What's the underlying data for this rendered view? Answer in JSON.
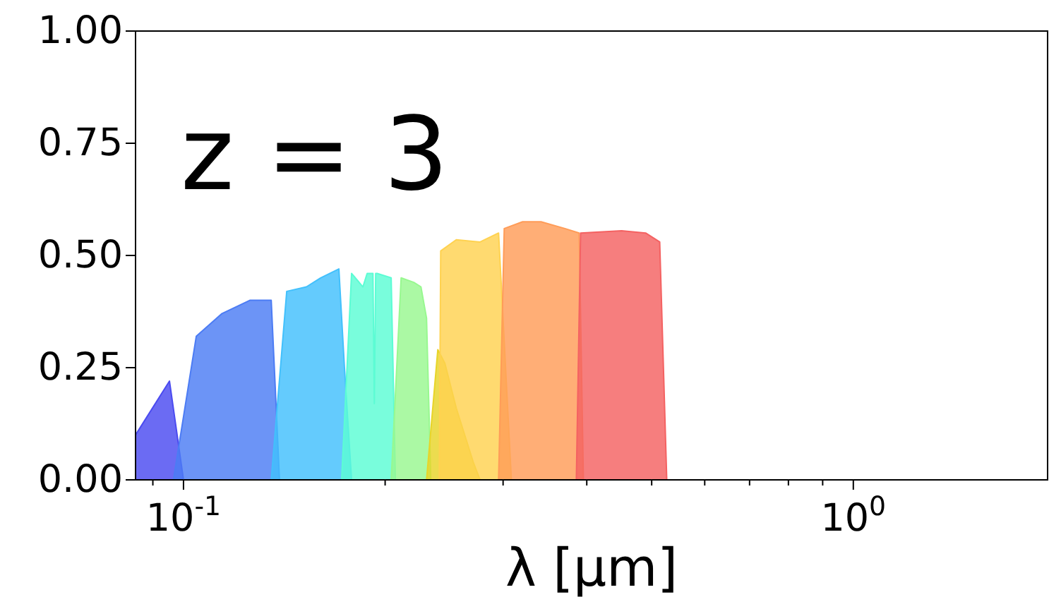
{
  "chart_data": {
    "type": "area",
    "xlabel": "λ [μm]",
    "annotations": [
      "z = 3"
    ],
    "log": "x",
    "grid": false,
    "xlim": [
      0.0848,
      1.95
    ],
    "ylim": [
      0,
      1
    ],
    "xticks": [
      {
        "value": 0.09,
        "label": null
      },
      {
        "value": 0.1,
        "label": "10$^{-1}$"
      },
      {
        "value": 0.2,
        "label": null
      },
      {
        "value": 0.3,
        "label": null
      },
      {
        "value": 0.4,
        "label": null
      },
      {
        "value": 0.5,
        "label": null
      },
      {
        "value": 0.6,
        "label": null
      },
      {
        "value": 0.7,
        "label": null
      },
      {
        "value": 0.8,
        "label": null
      },
      {
        "value": 0.9,
        "label": null
      },
      {
        "value": 1,
        "label": "10$^{0}$"
      }
    ],
    "yticks": [
      {
        "value": 0,
        "label": "0.00"
      },
      {
        "value": 0.25,
        "label": "0.25"
      },
      {
        "value": 0.5,
        "label": "0.50"
      },
      {
        "value": 0.75,
        "label": "0.75"
      },
      {
        "value": 1,
        "label": "1.00"
      }
    ],
    "series": [
      {
        "color": "#4b4bf0",
        "x": [
          0.0848,
          0.0953,
          0.1
        ],
        "values": [
          0.1,
          0.22,
          0
        ]
      },
      {
        "color": "#4c7cf4",
        "x": [
          0.0966,
          0.1045,
          0.114,
          0.1256,
          0.1352,
          0.1391
        ],
        "values": [
          0,
          0.32,
          0.37,
          0.4,
          0.4,
          0
        ]
      },
      {
        "color": "#42c0fc",
        "x": [
          0.1352,
          0.1426,
          0.1526,
          0.1602,
          0.1706,
          0.1739,
          0.1782
        ],
        "values": [
          0,
          0.42,
          0.43,
          0.45,
          0.47,
          0.25,
          0
        ]
      },
      {
        "color": "#5cfcd4",
        "x": [
          0.1722,
          0.1782,
          0.1853,
          0.188,
          0.1909,
          0.1918,
          0.1927,
          0.1936,
          0.1946,
          0.2042,
          0.2072
        ],
        "values": [
          0,
          0.46,
          0.43,
          0.46,
          0.46,
          0.46,
          0.17,
          0.46,
          0.46,
          0.45,
          0
        ]
      },
      {
        "color": "#98f890",
        "x": [
          0.2042,
          0.2113,
          0.2207,
          0.2262,
          0.2306,
          0.234
        ],
        "values": [
          0,
          0.45,
          0.44,
          0.43,
          0.36,
          0
        ]
      },
      {
        "color": "#e8d428",
        "x": [
          0.2306,
          0.2397,
          0.2456,
          0.2554,
          0.2707,
          0.2772
        ],
        "values": [
          0,
          0.29,
          0.26,
          0.16,
          0.04,
          0
        ]
      },
      {
        "color": "#ffd250",
        "x": [
          0.2409,
          0.2421,
          0.2554,
          0.2772,
          0.2954,
          0.3087
        ],
        "values": [
          0,
          0.51,
          0.535,
          0.53,
          0.55,
          0
        ]
      },
      {
        "color": "#ff9c58",
        "x": [
          0.2954,
          0.3012,
          0.3208,
          0.3418,
          0.3711,
          0.3897,
          0.3954
        ],
        "values": [
          0,
          0.56,
          0.575,
          0.575,
          0.56,
          0.55,
          0
        ]
      },
      {
        "color": "#f46262",
        "x": [
          0.3859,
          0.3916,
          0.4508,
          0.4897,
          0.514,
          0.5266
        ],
        "values": [
          0,
          0.55,
          0.555,
          0.55,
          0.53,
          0
        ]
      }
    ]
  }
}
